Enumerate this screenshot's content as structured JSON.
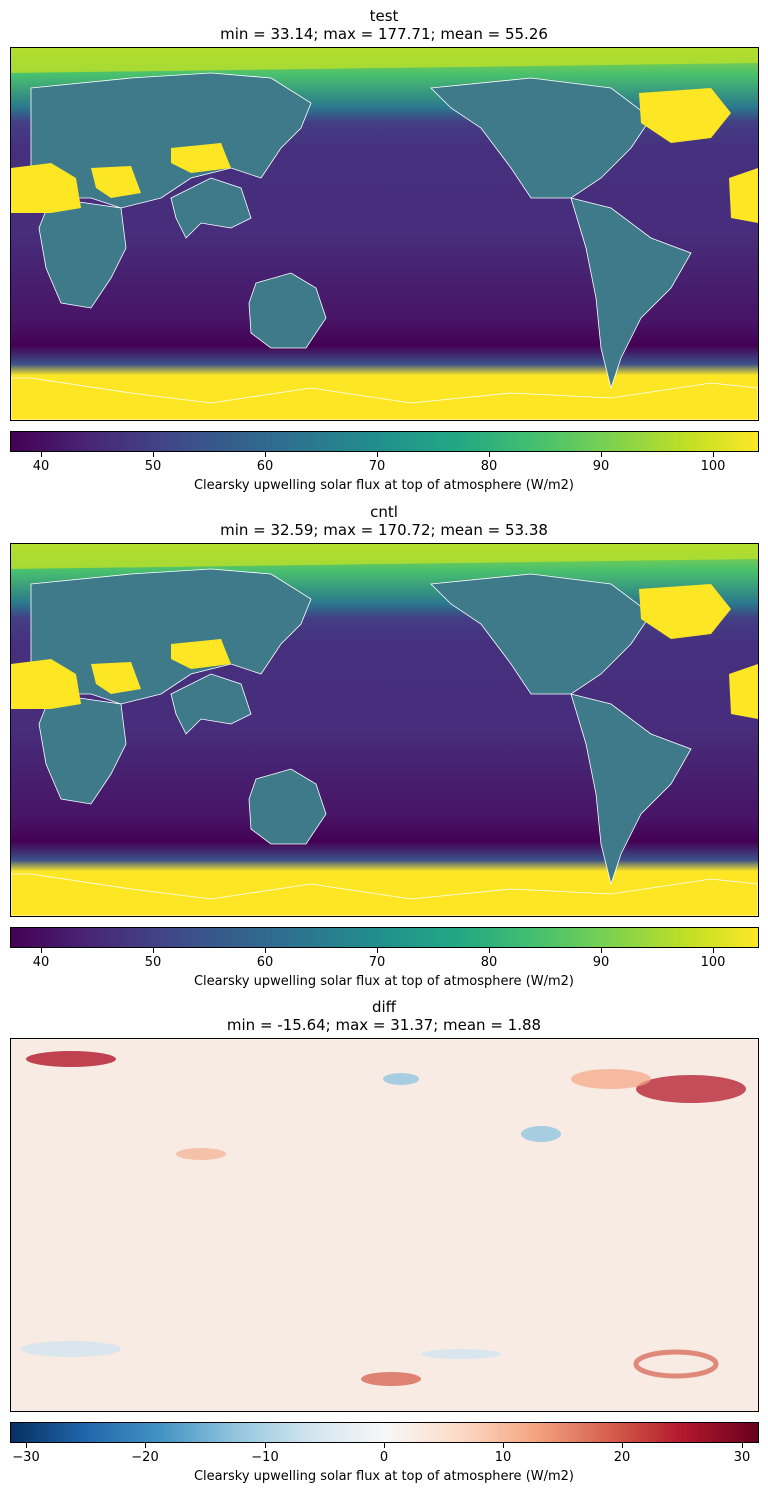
{
  "chart_data": [
    {
      "type": "heatmap",
      "title": "test",
      "subtitle": "min = 33.14; max = 177.71; mean = 55.26",
      "colorbar": {
        "label": "Clearsky upwelling solar flux at top of atmosphere (W/m2)",
        "ticks": [
          40,
          50,
          60,
          70,
          80,
          90,
          100
        ],
        "range": [
          37.5,
          104.5
        ],
        "colormap": "viridis"
      },
      "stats": {
        "min": 33.14,
        "max": 177.71,
        "mean": 55.26
      }
    },
    {
      "type": "heatmap",
      "title": "cntl",
      "subtitle": "min = 32.59; max = 170.72; mean = 53.38",
      "colorbar": {
        "label": "Clearsky upwelling solar flux at top of atmosphere (W/m2)",
        "ticks": [
          40,
          50,
          60,
          70,
          80,
          90,
          100
        ],
        "range": [
          37.5,
          104.5
        ],
        "colormap": "viridis"
      },
      "stats": {
        "min": 32.59,
        "max": 170.72,
        "mean": 53.38
      }
    },
    {
      "type": "heatmap",
      "title": "diff",
      "subtitle": "min = -15.64; max = 31.37; mean = 1.88",
      "colorbar": {
        "label": "Clearsky upwelling solar flux at top of atmosphere (W/m2)",
        "ticks": [
          -30,
          -20,
          -10,
          0,
          10,
          20,
          30
        ],
        "range": [
          -31.4,
          31.4
        ],
        "colormap": "RdBu_r"
      },
      "stats": {
        "min": -15.64,
        "max": 31.37,
        "mean": 1.88
      }
    }
  ]
}
